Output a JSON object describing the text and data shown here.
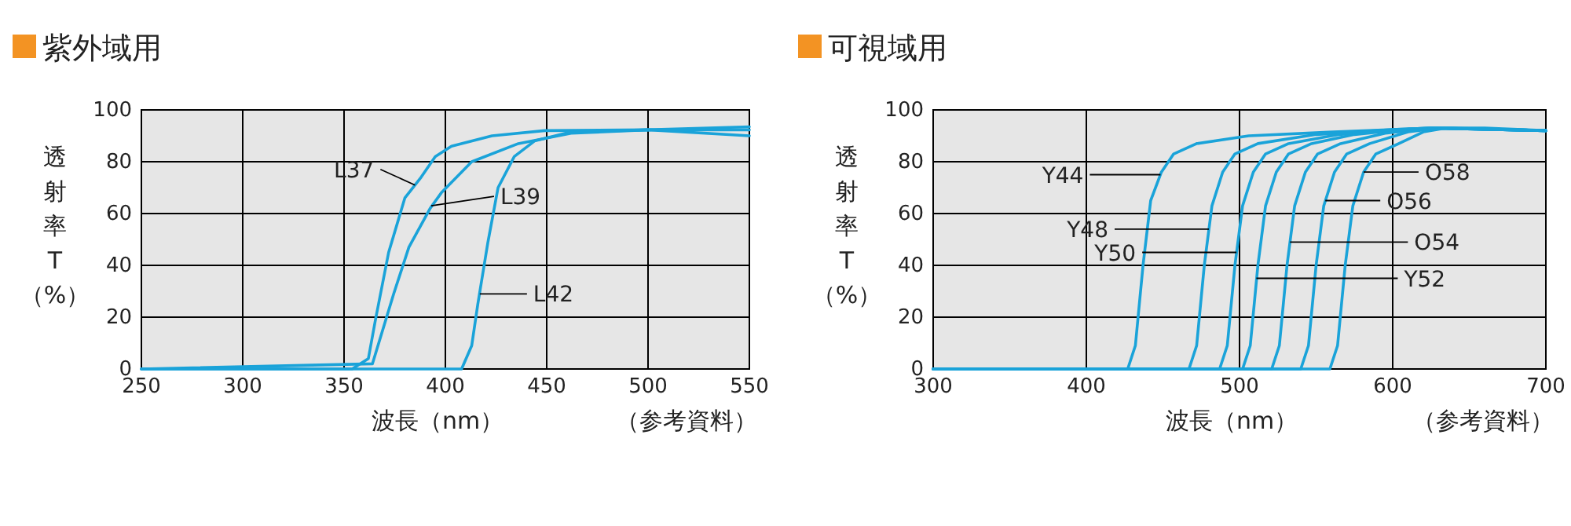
{
  "chart_data": [
    {
      "type": "line",
      "title": "紫外域用",
      "xlabel": "波長（nm）",
      "ylabel": "透射率T（%）",
      "xlim": [
        250,
        550
      ],
      "ylim": [
        0,
        100
      ],
      "xticks": [
        250,
        300,
        350,
        400,
        450,
        500,
        550
      ],
      "yticks": [
        0,
        20,
        40,
        60,
        80,
        100
      ],
      "grid": true,
      "marker": "none",
      "line_style": "solid",
      "series": [
        {
          "color": "#1aa3d9",
          "x": [
            250,
            354,
            362,
            365.5,
            372,
            380,
            388,
            395,
            403,
            423,
            449,
            500,
            550
          ],
          "values": [
            0,
            0,
            4,
            19,
            45,
            66,
            74,
            82,
            86,
            90,
            92,
            92.3,
            90
          ]
        },
        {
          "color": "#1aa3d9",
          "x": [
            250,
            364,
            374.5,
            382,
            392.5,
            398,
            413,
            436,
            462,
            500,
            550
          ],
          "values": [
            0,
            2,
            29,
            47,
            62,
            68,
            80,
            87,
            91,
            92.3,
            92.3
          ]
        },
        {
          "color": "#1aa3d9",
          "x": [
            250,
            408,
            413,
            416,
            421,
            426,
            434,
            444,
            462,
            500,
            550
          ],
          "values": [
            0,
            0,
            9,
            25,
            49,
            70,
            82,
            88,
            91.5,
            92.3,
            93.5
          ]
        }
      ],
      "annotations": [
        {
          "text": "L37",
          "x": 385,
          "y": 71
        },
        {
          "text": "L39",
          "x": 393,
          "y": 63
        },
        {
          "text": "L42",
          "x": 417,
          "y": 29
        },
        "（参考資料）"
      ]
    },
    {
      "type": "line",
      "title": "可視域用",
      "xlabel": "波長（nm）",
      "ylabel": "透射率T（%）",
      "xlim": [
        300,
        700
      ],
      "ylim": [
        0,
        100
      ],
      "xticks": [
        300,
        400,
        500,
        600,
        700
      ],
      "yticks": [
        0,
        20,
        40,
        60,
        80,
        100
      ],
      "grid": true,
      "marker": "none",
      "line_style": "solid",
      "series": [
        {
          "color": "#1aa3d9",
          "x": [
            300,
            427,
            432,
            437,
            442,
            449,
            457,
            472,
            506,
            558,
            600,
            626,
            660,
            700
          ],
          "values": [
            0,
            0,
            9,
            40,
            65,
            76,
            83,
            87,
            90,
            91.4,
            92.4,
            93,
            93,
            92
          ]
        },
        {
          "color": "#1aa3d9",
          "x": [
            300,
            467,
            472,
            477,
            482,
            489,
            497,
            512,
            550,
            600,
            626,
            700
          ],
          "values": [
            0,
            0,
            9,
            40,
            63,
            76,
            83,
            87,
            90.5,
            92.4,
            93,
            92
          ]
        },
        {
          "color": "#1aa3d9",
          "x": [
            300,
            487,
            492,
            497,
            502,
            509,
            517,
            532,
            565,
            600,
            626,
            700
          ],
          "values": [
            0,
            0,
            9,
            40,
            63,
            76,
            83,
            87,
            90.5,
            92.2,
            93,
            92
          ]
        },
        {
          "color": "#1aa3d9",
          "x": [
            300,
            502,
            507,
            512,
            517,
            524,
            532,
            547,
            575,
            610,
            626,
            700
          ],
          "values": [
            0,
            0,
            9,
            40,
            63,
            76,
            83,
            87,
            90.5,
            92.6,
            93,
            92
          ]
        },
        {
          "color": "#1aa3d9",
          "x": [
            300,
            521,
            526,
            531,
            536,
            543,
            551,
            566,
            595,
            626,
            700
          ],
          "values": [
            0,
            0,
            9,
            40,
            63,
            76,
            83,
            87,
            91,
            93,
            92
          ]
        },
        {
          "color": "#1aa3d9",
          "x": [
            300,
            540,
            545,
            550,
            555,
            562,
            570,
            585,
            610,
            630,
            700
          ],
          "values": [
            0,
            0,
            9,
            40,
            63,
            76,
            83,
            87,
            91.5,
            93,
            92
          ]
        },
        {
          "color": "#1aa3d9",
          "x": [
            300,
            559,
            564,
            569,
            574,
            581,
            589,
            604,
            620,
            635,
            700
          ],
          "values": [
            0,
            0,
            9,
            40,
            63,
            76,
            83,
            87,
            91.5,
            93,
            92
          ]
        }
      ],
      "annotations": [
        {
          "text": "Y44",
          "x": 448.4,
          "y": 75
        },
        {
          "text": "Y48",
          "x": 480,
          "y": 54
        },
        {
          "text": "Y50",
          "x": 498,
          "y": 45
        },
        {
          "text": "Y52",
          "x": 511,
          "y": 35
        },
        {
          "text": "O54",
          "x": 533,
          "y": 49
        },
        {
          "text": "O56",
          "x": 556,
          "y": 65
        },
        {
          "text": "O58",
          "x": 581,
          "y": 76
        },
        "（参考資料）"
      ]
    }
  ]
}
